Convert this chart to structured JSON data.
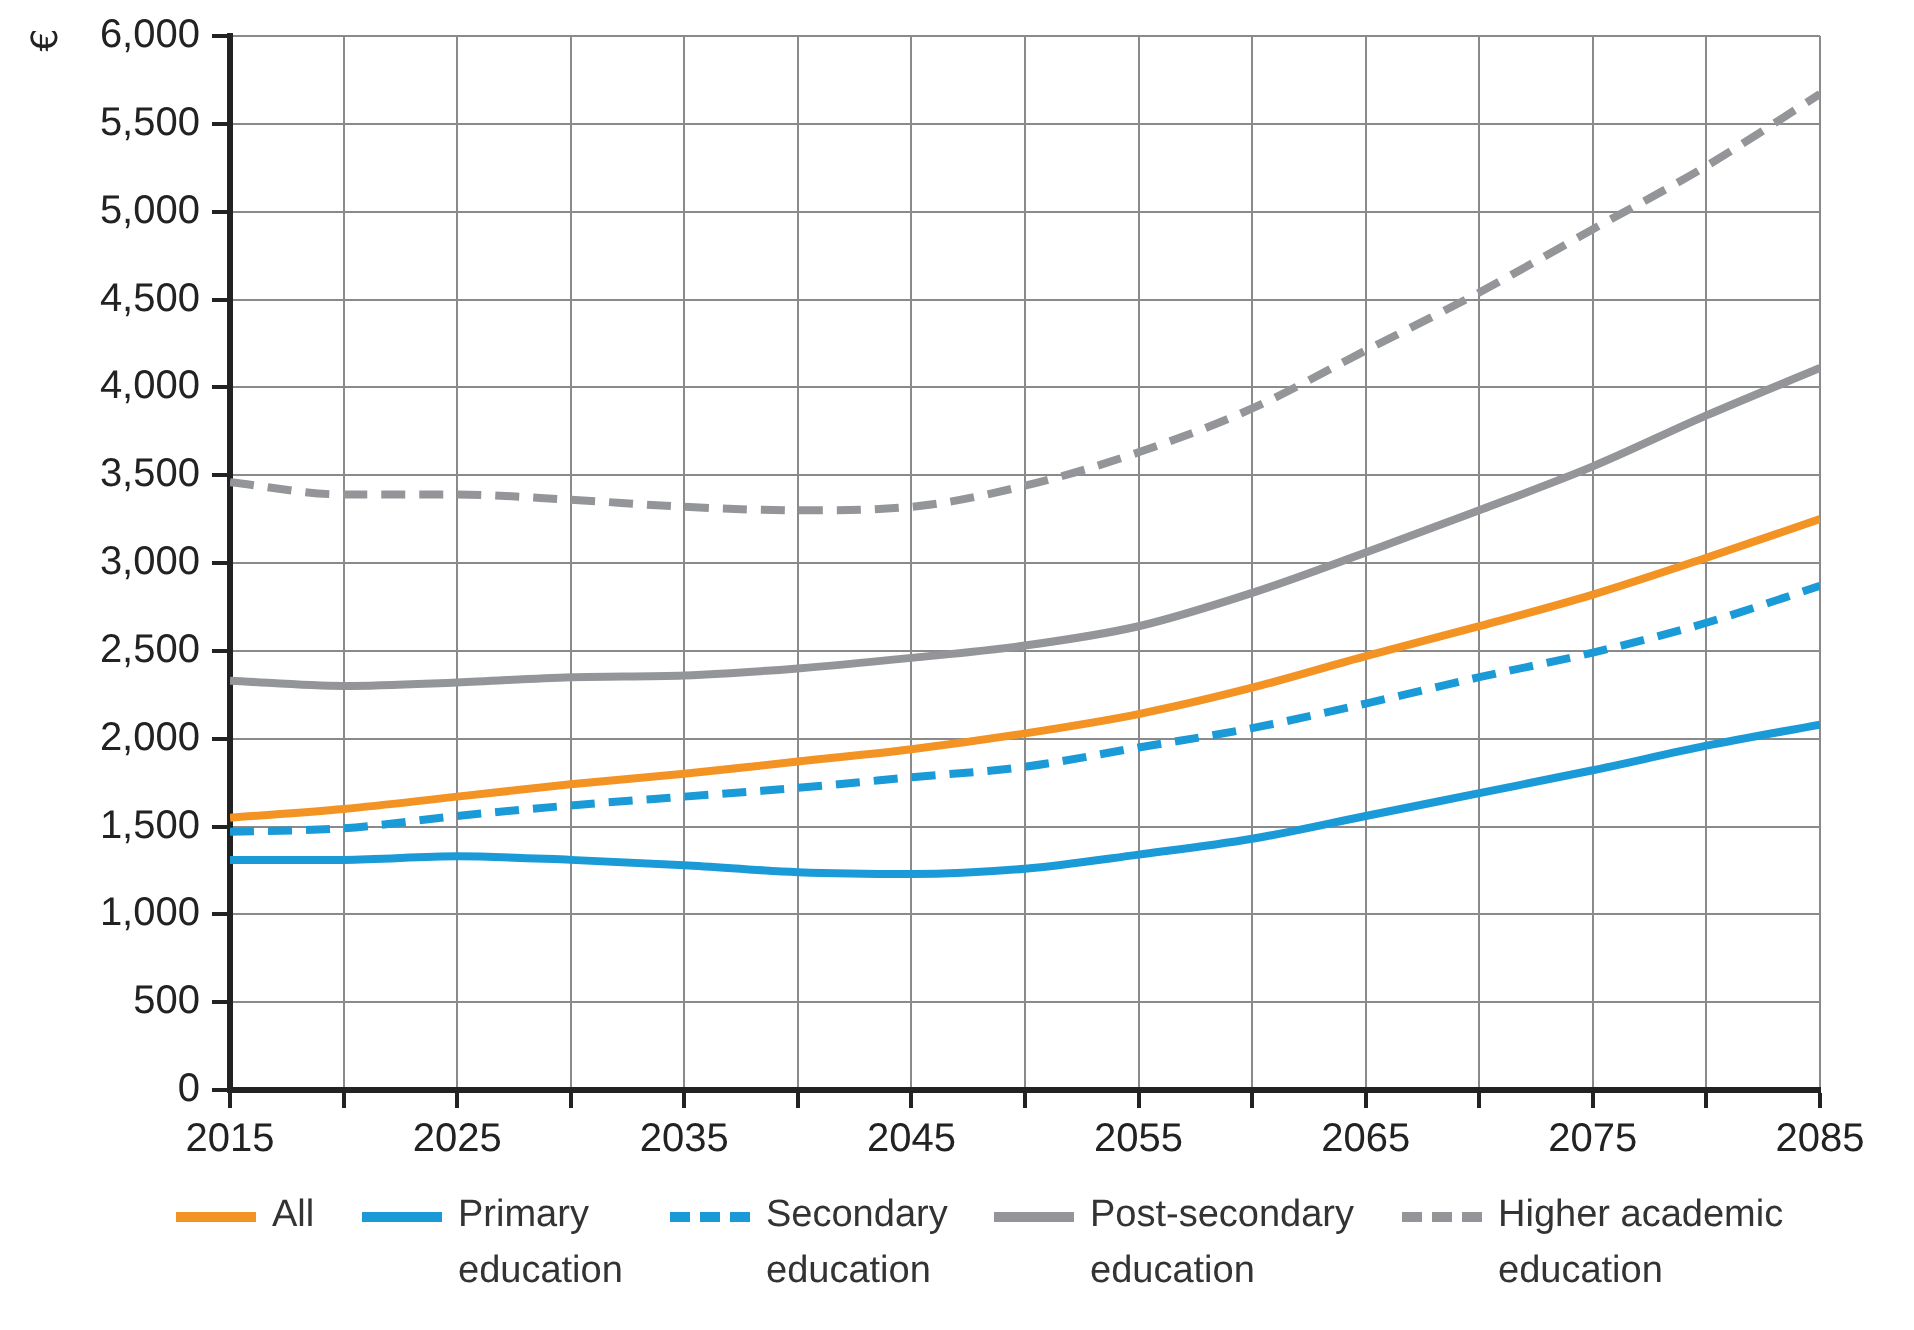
{
  "chart_data": {
    "type": "line",
    "ylabel": "€",
    "x": [
      2015,
      2020,
      2025,
      2030,
      2035,
      2040,
      2045,
      2050,
      2055,
      2060,
      2065,
      2070,
      2075,
      2080,
      2085
    ],
    "xlim": [
      2015,
      2085
    ],
    "xticks": [
      2015,
      {
        "value": 2020,
        "label": null
      },
      2025,
      {
        "value": 2030,
        "label": null
      },
      2035,
      {
        "value": 2040,
        "label": null
      },
      2045,
      {
        "value": 2050,
        "label": null
      },
      2055,
      {
        "value": 2060,
        "label": null
      },
      2065,
      {
        "value": 2070,
        "label": null
      },
      2075,
      {
        "value": 2080,
        "label": null
      },
      2085
    ],
    "ylim": [
      0,
      6000
    ],
    "yticks": [
      0,
      500,
      {
        "value": 1000,
        "label": "1,000"
      },
      {
        "value": 1500,
        "label": "1,500"
      },
      {
        "value": 2000,
        "label": "2,000"
      },
      {
        "value": 2500,
        "label": "2,500"
      },
      {
        "value": 3000,
        "label": "3,000"
      },
      {
        "value": 3500,
        "label": "3,500"
      },
      {
        "value": 4000,
        "label": "4,000"
      },
      {
        "value": 4500,
        "label": "4,500"
      },
      {
        "value": 5000,
        "label": "5,000"
      },
      {
        "value": 5500,
        "label": "5,500"
      },
      {
        "value": 6000,
        "label": "6,000"
      }
    ],
    "grid": true,
    "legend": "bottom",
    "marker": "none",
    "series": [
      {
        "name": "All",
        "color": "#f39323",
        "line_style": "solid",
        "values": [
          1550,
          1600,
          1670,
          1740,
          1800,
          1870,
          1940,
          2030,
          2140,
          2290,
          2470,
          2640,
          2820,
          3030,
          3250
        ]
      },
      {
        "name": "Primary education",
        "color": "#1a9ad6",
        "line_style": "solid",
        "values": [
          1310,
          1310,
          1330,
          1310,
          1280,
          1240,
          1230,
          1260,
          1340,
          1430,
          1560,
          1690,
          1820,
          1960,
          2080
        ]
      },
      {
        "name": "Secondary education",
        "color": "#1a9ad6",
        "line_style": "dashed",
        "values": [
          1470,
          1490,
          1560,
          1620,
          1670,
          1720,
          1780,
          1840,
          1950,
          2060,
          2200,
          2350,
          2490,
          2660,
          2870
        ]
      },
      {
        "name": "Post-secondary education",
        "color": "#939598",
        "line_style": "solid",
        "values": [
          2330,
          2300,
          2320,
          2350,
          2360,
          2400,
          2460,
          2530,
          2640,
          2830,
          3060,
          3300,
          3550,
          3840,
          4110
        ]
      },
      {
        "name": "Higher academic education",
        "color": "#939598",
        "line_style": "dashed",
        "values": [
          3460,
          3390,
          3390,
          3360,
          3320,
          3300,
          3320,
          3440,
          3630,
          3880,
          4210,
          4540,
          4900,
          5260,
          5670
        ]
      }
    ]
  }
}
